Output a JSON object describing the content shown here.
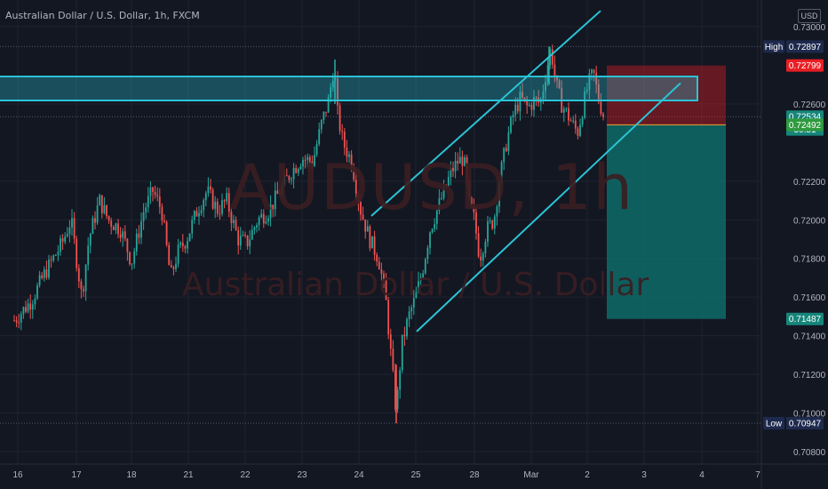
{
  "header": {
    "symbol_title": "Australian Dollar / U.S. Dollar, 1h, FXCM",
    "currency_button": "USD",
    "watermark_ticker": "AUDUSD, 1h",
    "watermark_name": "Australian Dollar / U.S. Dollar"
  },
  "colors": {
    "background": "#131722",
    "up": "#26a69a",
    "down": "#ef5350",
    "trendline": "#2bc4d6",
    "stop_zone": "#e91e24",
    "target_zone": "#0f6b68"
  },
  "chart_data": {
    "type": "candlestick",
    "title": "",
    "x_tick_labels": [
      "16",
      "17",
      "18",
      "21",
      "22",
      "23",
      "24",
      "25",
      "28",
      "Mar",
      "2",
      "3",
      "4",
      "7"
    ],
    "y_tick_labels": [
      "0.73000",
      "0.72600",
      "0.72200",
      "0.72000",
      "0.71800",
      "0.71600",
      "0.71400",
      "0.71200",
      "0.71000",
      "0.70800"
    ],
    "ylim": [
      0.7073,
      0.7312
    ],
    "price_labels": [
      {
        "label": "High",
        "value": "0.72897",
        "price": 0.72897,
        "bg": "#1e2a4d",
        "fg": "#ffffff"
      },
      {
        "label": "",
        "value": "0.72799",
        "price": 0.72799,
        "bg": "#e91e24",
        "fg": "#ffffff"
      },
      {
        "label": "",
        "value": "0.72534",
        "price": 0.72534,
        "bg": "#16857a",
        "fg": "#ffffff"
      },
      {
        "label": "",
        "value": "30:51",
        "price": 0.72468,
        "bg": "#16857a",
        "fg": "#ffffff"
      },
      {
        "label": "",
        "value": "0.72492",
        "price": 0.72492,
        "bg": "#2f9a3e",
        "fg": "#ffffff"
      },
      {
        "label": "",
        "value": "0.71487",
        "price": 0.71487,
        "bg": "#16857a",
        "fg": "#ffffff"
      },
      {
        "label": "Low",
        "value": "0.70947",
        "price": 0.70947,
        "bg": "#1e2a4d",
        "fg": "#ffffff"
      }
    ],
    "anchors": [
      [
        16,
        0.7148
      ],
      [
        20,
        0.715
      ],
      [
        35,
        0.7158
      ],
      [
        50,
        0.7172
      ],
      [
        70,
        0.7188
      ],
      [
        80,
        0.72
      ],
      [
        92,
        0.716
      ],
      [
        100,
        0.719
      ],
      [
        112,
        0.721
      ],
      [
        122,
        0.72
      ],
      [
        136,
        0.7195
      ],
      [
        148,
        0.7178
      ],
      [
        162,
        0.7205
      ],
      [
        172,
        0.7215
      ],
      [
        182,
        0.7205
      ],
      [
        192,
        0.717
      ],
      [
        200,
        0.7183
      ],
      [
        210,
        0.719
      ],
      [
        222,
        0.7205
      ],
      [
        233,
        0.7215
      ],
      [
        245,
        0.7205
      ],
      [
        255,
        0.721
      ],
      [
        268,
        0.719
      ],
      [
        278,
        0.7188
      ],
      [
        290,
        0.72
      ],
      [
        303,
        0.7205
      ],
      [
        315,
        0.7215
      ],
      [
        328,
        0.7225
      ],
      [
        340,
        0.7232
      ],
      [
        352,
        0.723
      ],
      [
        362,
        0.725
      ],
      [
        370,
        0.7262
      ],
      [
        376,
        0.728
      ],
      [
        380,
        0.7255
      ],
      [
        386,
        0.724
      ],
      [
        396,
        0.723
      ],
      [
        406,
        0.7205
      ],
      [
        416,
        0.719
      ],
      [
        426,
        0.718
      ],
      [
        434,
        0.716
      ],
      [
        440,
        0.713
      ],
      [
        446,
        0.71
      ],
      [
        452,
        0.7135
      ],
      [
        460,
        0.715
      ],
      [
        468,
        0.716
      ],
      [
        476,
        0.7175
      ],
      [
        484,
        0.7195
      ],
      [
        492,
        0.7205
      ],
      [
        500,
        0.7215
      ],
      [
        508,
        0.7225
      ],
      [
        515,
        0.723
      ],
      [
        522,
        0.7232
      ],
      [
        528,
        0.7208
      ],
      [
        534,
        0.72
      ],
      [
        540,
        0.718
      ],
      [
        548,
        0.7195
      ],
      [
        556,
        0.72
      ],
      [
        562,
        0.722
      ],
      [
        570,
        0.724
      ],
      [
        578,
        0.7255
      ],
      [
        586,
        0.7263
      ],
      [
        594,
        0.7258
      ],
      [
        602,
        0.7262
      ],
      [
        608,
        0.726
      ],
      [
        614,
        0.7275
      ],
      [
        620,
        0.7289
      ],
      [
        626,
        0.727
      ],
      [
        632,
        0.726
      ],
      [
        638,
        0.7255
      ],
      [
        644,
        0.725
      ],
      [
        650,
        0.7245
      ],
      [
        656,
        0.7258
      ],
      [
        662,
        0.727
      ],
      [
        668,
        0.7276
      ],
      [
        674,
        0.7262
      ],
      [
        680,
        0.7253
      ]
    ],
    "resistance_zone": {
      "top": 0.72742,
      "bottom": 0.72618
    },
    "channel": {
      "upper": [
        [
          418,
          0.7202
        ],
        [
          676,
          0.73082
        ]
      ],
      "lower": [
        [
          469,
          0.71422
        ],
        [
          766,
          0.72708
        ]
      ]
    },
    "position": {
      "type": "short",
      "entry": 0.72492,
      "stop": 0.72799,
      "target": 0.71487
    }
  }
}
